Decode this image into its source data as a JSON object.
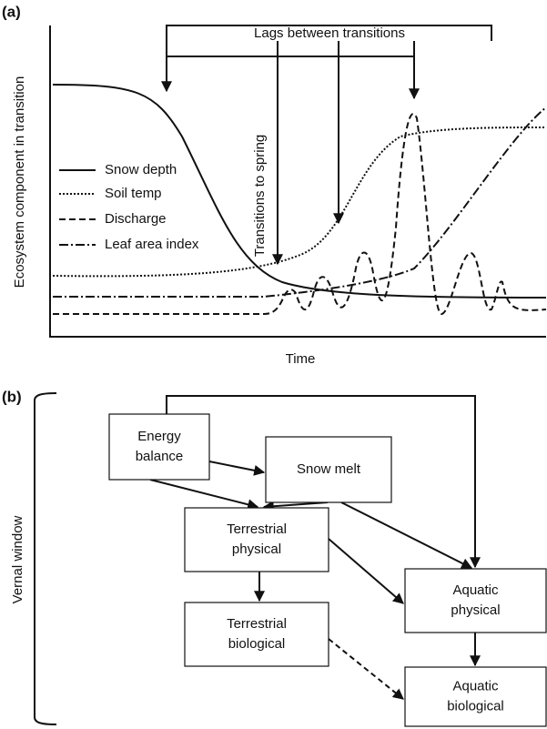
{
  "panel_a": {
    "label": "(a)",
    "bracket_label": "Lags between transitions",
    "arrow_label": "Transitions to spring",
    "y_label": "Ecosystem component in transition",
    "x_label": "Time",
    "legend": [
      "Snow depth",
      "Soil temp",
      "Discharge",
      "Leaf area index"
    ]
  },
  "panel_b": {
    "label": "(b)",
    "side_label": "Vernal window",
    "nodes": [
      {
        "lines": [
          "Energy",
          "balance"
        ]
      },
      {
        "lines": [
          "Snow melt"
        ]
      },
      {
        "lines": [
          "Terrestrial",
          "physical"
        ]
      },
      {
        "lines": [
          "Aquatic",
          "physical"
        ]
      },
      {
        "lines": [
          "Terrestrial",
          "biological"
        ]
      },
      {
        "lines": [
          "Aquatic",
          "biological"
        ]
      }
    ]
  }
}
